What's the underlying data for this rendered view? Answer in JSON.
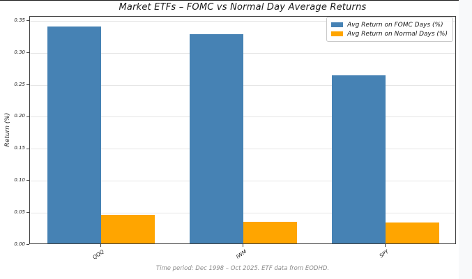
{
  "chart_data": {
    "type": "bar",
    "title": "Market ETFs – FOMC vs Normal Day Average Returns",
    "ylabel": "Return (%)",
    "xlabel": "",
    "footnote": "Time period: Dec 1998 – Oct 2025. ETF data from EODHD.",
    "categories": [
      "QQQ",
      "IWM",
      "SPY"
    ],
    "series": [
      {
        "name": "Avg Return on FOMC Days (%)",
        "color": "#4682b4",
        "values": [
          0.34,
          0.327,
          0.263
        ]
      },
      {
        "name": "Avg Return on Normal Days (%)",
        "color": "#ffa500",
        "values": [
          0.045,
          0.034,
          0.033
        ]
      }
    ],
    "ylim": [
      0,
      0.357
    ],
    "ytick_values": [
      0.0,
      0.05,
      0.1,
      0.15,
      0.2,
      0.25,
      0.3,
      0.35
    ],
    "ytick_labels": [
      "0.00",
      "0.05",
      "0.10",
      "0.15",
      "0.20",
      "0.25",
      "0.30",
      "0.35"
    ],
    "grid": "horizontal",
    "legend_position": "upper right",
    "accent_blue": "#4682b4",
    "accent_orange": "#ffa500",
    "grid_color": "#e6e6e6",
    "spine_color": "#404040",
    "text_color": "#262626",
    "footnote_color": "#8c8c8c"
  }
}
